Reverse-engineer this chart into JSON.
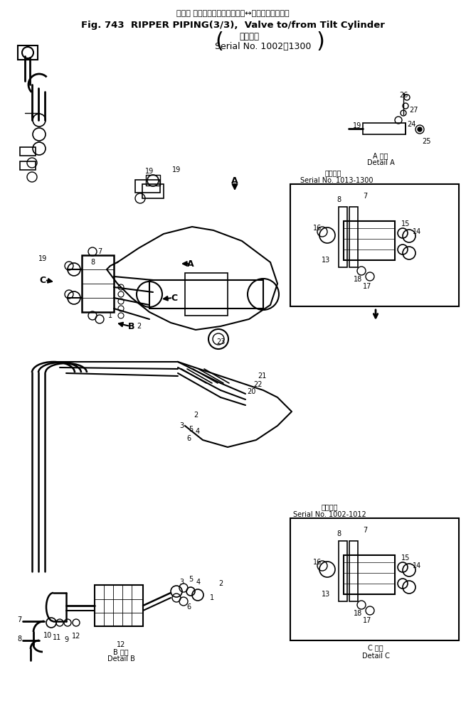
{
  "title_jp": "リッパ パイピング　　バルブ　↔　チルトシリンダ",
  "title_en": "Fig. 743  RIPPER PIPING(3/3),  Valve to/from Tilt Cylinder",
  "serial_jp": "適用号機",
  "serial_en": "Serial No. 1002～1300",
  "serial_1013_jp": "適用号機",
  "serial_1013_en": "Serial No. 1013-1300",
  "serial_1002_jp": "適用号機",
  "serial_1002_en": "Serial No. 1002-1012",
  "detail_a_jp": "A 詳細",
  "detail_a_en": "Detail A",
  "detail_b_jp": "B 詳細",
  "detail_b_en": "Detail B",
  "detail_c_jp": "C 詳細",
  "detail_c_en": "Detail C",
  "bg_color": "#ffffff",
  "fig_width": 6.55,
  "fig_height": 9.89,
  "dpi": 100
}
